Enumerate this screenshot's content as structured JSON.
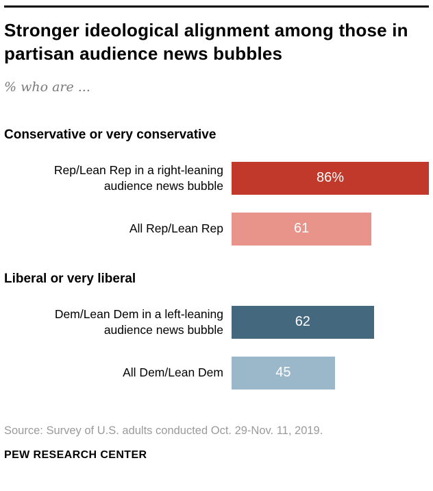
{
  "header": {
    "title": "Stronger ideological alignment among those in partisan audience news bubbles",
    "subtitle": "% who are ..."
  },
  "chart_data": {
    "type": "bar",
    "orientation": "horizontal",
    "title": "Stronger ideological alignment among those in partisan audience news bubbles",
    "subtitle": "% who are ...",
    "unit": "percent",
    "xmax": 86,
    "legend": "none",
    "grid": false,
    "groups": [
      {
        "label": "Conservative or very conservative",
        "bars": [
          {
            "label": "Rep/Lean Rep in a right-leaning audience news bubble",
            "value": 86,
            "value_label": "86%",
            "color": "#c1392a"
          },
          {
            "label": "All Rep/Lean Rep",
            "value": 61,
            "value_label": "61",
            "color": "#e8948a"
          }
        ]
      },
      {
        "label": "Liberal or very liberal",
        "bars": [
          {
            "label": "Dem/Lean Dem in a left-leaning audience news bubble",
            "value": 62,
            "value_label": "62",
            "color": "#44697f"
          },
          {
            "label": "All Dem/Lean Dem",
            "value": 45,
            "value_label": "45",
            "color": "#9bb8ca"
          }
        ]
      }
    ]
  },
  "footer": {
    "source": "Source: Survey of U.S. adults conducted Oct. 29-Nov. 11, 2019.",
    "brand": "PEW RESEARCH CENTER"
  }
}
